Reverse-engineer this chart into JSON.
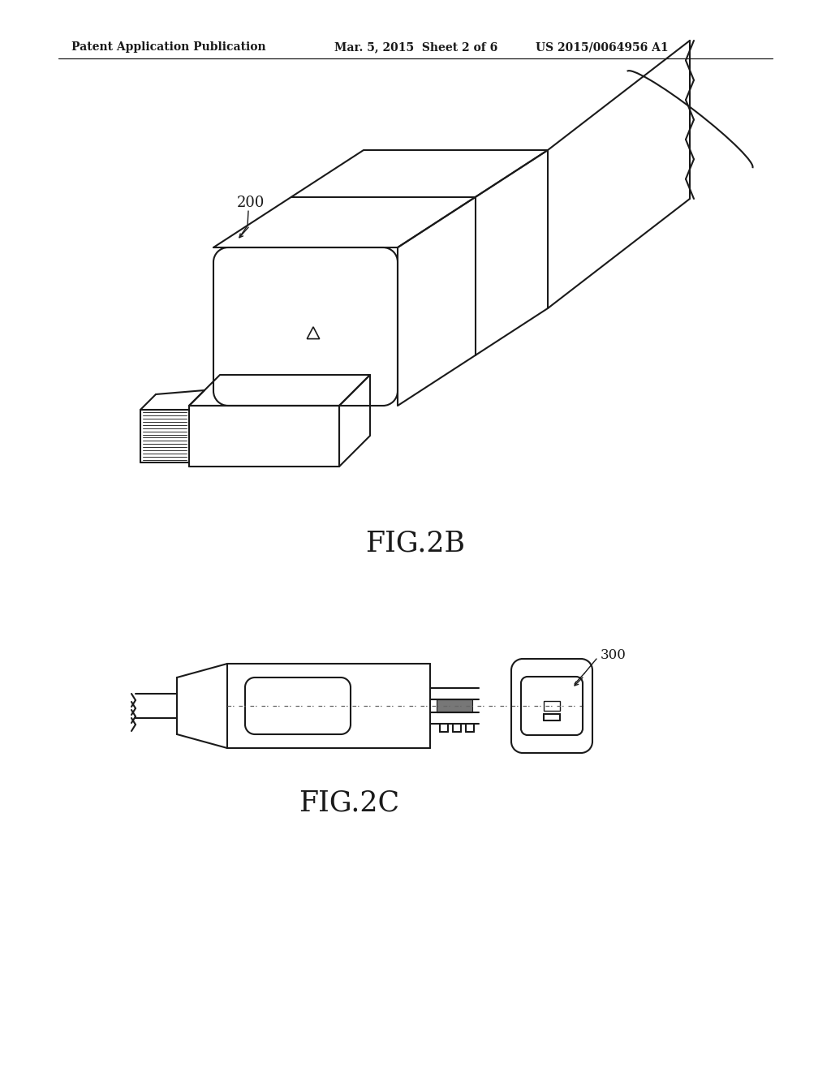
{
  "bg_color": "#ffffff",
  "line_color": "#1a1a1a",
  "header_left": "Patent Application Publication",
  "header_mid": "Mar. 5, 2015  Sheet 2 of 6",
  "header_right": "US 2015/0064956 A1",
  "fig2b_label": "FIG.2B",
  "fig2c_label": "FIG.2C",
  "label_200": "200",
  "label_300": "300"
}
